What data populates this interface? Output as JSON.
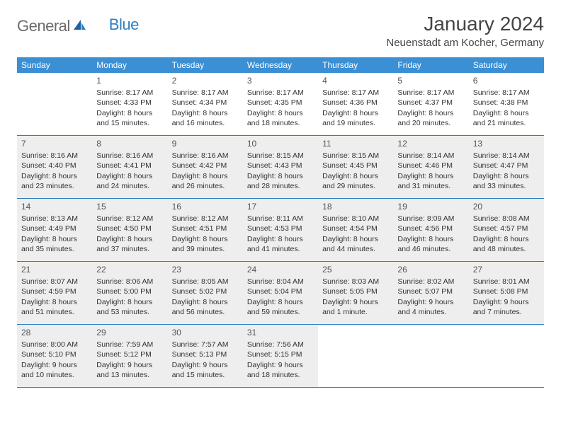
{
  "logo": {
    "text1": "General",
    "text2": "Blue"
  },
  "title": "January 2024",
  "location": "Neuenstadt am Kocher, Germany",
  "colors": {
    "header_bg": "#3b8fd4",
    "header_text": "#ffffff",
    "shade_bg": "#eeeeee",
    "rule": "#2d7fc1",
    "logo_gray": "#6b6b6b",
    "logo_blue": "#2d7fc1"
  },
  "weekdays": [
    "Sunday",
    "Monday",
    "Tuesday",
    "Wednesday",
    "Thursday",
    "Friday",
    "Saturday"
  ],
  "weeks": [
    [
      {
        "num": "",
        "sunrise": "",
        "sunset": "",
        "daylight1": "",
        "daylight2": "",
        "shaded": false
      },
      {
        "num": "1",
        "sunrise": "Sunrise: 8:17 AM",
        "sunset": "Sunset: 4:33 PM",
        "daylight1": "Daylight: 8 hours",
        "daylight2": "and 15 minutes.",
        "shaded": false
      },
      {
        "num": "2",
        "sunrise": "Sunrise: 8:17 AM",
        "sunset": "Sunset: 4:34 PM",
        "daylight1": "Daylight: 8 hours",
        "daylight2": "and 16 minutes.",
        "shaded": false
      },
      {
        "num": "3",
        "sunrise": "Sunrise: 8:17 AM",
        "sunset": "Sunset: 4:35 PM",
        "daylight1": "Daylight: 8 hours",
        "daylight2": "and 18 minutes.",
        "shaded": false
      },
      {
        "num": "4",
        "sunrise": "Sunrise: 8:17 AM",
        "sunset": "Sunset: 4:36 PM",
        "daylight1": "Daylight: 8 hours",
        "daylight2": "and 19 minutes.",
        "shaded": false
      },
      {
        "num": "5",
        "sunrise": "Sunrise: 8:17 AM",
        "sunset": "Sunset: 4:37 PM",
        "daylight1": "Daylight: 8 hours",
        "daylight2": "and 20 minutes.",
        "shaded": false
      },
      {
        "num": "6",
        "sunrise": "Sunrise: 8:17 AM",
        "sunset": "Sunset: 4:38 PM",
        "daylight1": "Daylight: 8 hours",
        "daylight2": "and 21 minutes.",
        "shaded": false
      }
    ],
    [
      {
        "num": "7",
        "sunrise": "Sunrise: 8:16 AM",
        "sunset": "Sunset: 4:40 PM",
        "daylight1": "Daylight: 8 hours",
        "daylight2": "and 23 minutes.",
        "shaded": true
      },
      {
        "num": "8",
        "sunrise": "Sunrise: 8:16 AM",
        "sunset": "Sunset: 4:41 PM",
        "daylight1": "Daylight: 8 hours",
        "daylight2": "and 24 minutes.",
        "shaded": true
      },
      {
        "num": "9",
        "sunrise": "Sunrise: 8:16 AM",
        "sunset": "Sunset: 4:42 PM",
        "daylight1": "Daylight: 8 hours",
        "daylight2": "and 26 minutes.",
        "shaded": true
      },
      {
        "num": "10",
        "sunrise": "Sunrise: 8:15 AM",
        "sunset": "Sunset: 4:43 PM",
        "daylight1": "Daylight: 8 hours",
        "daylight2": "and 28 minutes.",
        "shaded": true
      },
      {
        "num": "11",
        "sunrise": "Sunrise: 8:15 AM",
        "sunset": "Sunset: 4:45 PM",
        "daylight1": "Daylight: 8 hours",
        "daylight2": "and 29 minutes.",
        "shaded": true
      },
      {
        "num": "12",
        "sunrise": "Sunrise: 8:14 AM",
        "sunset": "Sunset: 4:46 PM",
        "daylight1": "Daylight: 8 hours",
        "daylight2": "and 31 minutes.",
        "shaded": true
      },
      {
        "num": "13",
        "sunrise": "Sunrise: 8:14 AM",
        "sunset": "Sunset: 4:47 PM",
        "daylight1": "Daylight: 8 hours",
        "daylight2": "and 33 minutes.",
        "shaded": true
      }
    ],
    [
      {
        "num": "14",
        "sunrise": "Sunrise: 8:13 AM",
        "sunset": "Sunset: 4:49 PM",
        "daylight1": "Daylight: 8 hours",
        "daylight2": "and 35 minutes.",
        "shaded": true
      },
      {
        "num": "15",
        "sunrise": "Sunrise: 8:12 AM",
        "sunset": "Sunset: 4:50 PM",
        "daylight1": "Daylight: 8 hours",
        "daylight2": "and 37 minutes.",
        "shaded": true
      },
      {
        "num": "16",
        "sunrise": "Sunrise: 8:12 AM",
        "sunset": "Sunset: 4:51 PM",
        "daylight1": "Daylight: 8 hours",
        "daylight2": "and 39 minutes.",
        "shaded": true
      },
      {
        "num": "17",
        "sunrise": "Sunrise: 8:11 AM",
        "sunset": "Sunset: 4:53 PM",
        "daylight1": "Daylight: 8 hours",
        "daylight2": "and 41 minutes.",
        "shaded": true
      },
      {
        "num": "18",
        "sunrise": "Sunrise: 8:10 AM",
        "sunset": "Sunset: 4:54 PM",
        "daylight1": "Daylight: 8 hours",
        "daylight2": "and 44 minutes.",
        "shaded": true
      },
      {
        "num": "19",
        "sunrise": "Sunrise: 8:09 AM",
        "sunset": "Sunset: 4:56 PM",
        "daylight1": "Daylight: 8 hours",
        "daylight2": "and 46 minutes.",
        "shaded": true
      },
      {
        "num": "20",
        "sunrise": "Sunrise: 8:08 AM",
        "sunset": "Sunset: 4:57 PM",
        "daylight1": "Daylight: 8 hours",
        "daylight2": "and 48 minutes.",
        "shaded": true
      }
    ],
    [
      {
        "num": "21",
        "sunrise": "Sunrise: 8:07 AM",
        "sunset": "Sunset: 4:59 PM",
        "daylight1": "Daylight: 8 hours",
        "daylight2": "and 51 minutes.",
        "shaded": true
      },
      {
        "num": "22",
        "sunrise": "Sunrise: 8:06 AM",
        "sunset": "Sunset: 5:00 PM",
        "daylight1": "Daylight: 8 hours",
        "daylight2": "and 53 minutes.",
        "shaded": true
      },
      {
        "num": "23",
        "sunrise": "Sunrise: 8:05 AM",
        "sunset": "Sunset: 5:02 PM",
        "daylight1": "Daylight: 8 hours",
        "daylight2": "and 56 minutes.",
        "shaded": true
      },
      {
        "num": "24",
        "sunrise": "Sunrise: 8:04 AM",
        "sunset": "Sunset: 5:04 PM",
        "daylight1": "Daylight: 8 hours",
        "daylight2": "and 59 minutes.",
        "shaded": true
      },
      {
        "num": "25",
        "sunrise": "Sunrise: 8:03 AM",
        "sunset": "Sunset: 5:05 PM",
        "daylight1": "Daylight: 9 hours",
        "daylight2": "and 1 minute.",
        "shaded": true
      },
      {
        "num": "26",
        "sunrise": "Sunrise: 8:02 AM",
        "sunset": "Sunset: 5:07 PM",
        "daylight1": "Daylight: 9 hours",
        "daylight2": "and 4 minutes.",
        "shaded": true
      },
      {
        "num": "27",
        "sunrise": "Sunrise: 8:01 AM",
        "sunset": "Sunset: 5:08 PM",
        "daylight1": "Daylight: 9 hours",
        "daylight2": "and 7 minutes.",
        "shaded": true
      }
    ],
    [
      {
        "num": "28",
        "sunrise": "Sunrise: 8:00 AM",
        "sunset": "Sunset: 5:10 PM",
        "daylight1": "Daylight: 9 hours",
        "daylight2": "and 10 minutes.",
        "shaded": true
      },
      {
        "num": "29",
        "sunrise": "Sunrise: 7:59 AM",
        "sunset": "Sunset: 5:12 PM",
        "daylight1": "Daylight: 9 hours",
        "daylight2": "and 13 minutes.",
        "shaded": true
      },
      {
        "num": "30",
        "sunrise": "Sunrise: 7:57 AM",
        "sunset": "Sunset: 5:13 PM",
        "daylight1": "Daylight: 9 hours",
        "daylight2": "and 15 minutes.",
        "shaded": true
      },
      {
        "num": "31",
        "sunrise": "Sunrise: 7:56 AM",
        "sunset": "Sunset: 5:15 PM",
        "daylight1": "Daylight: 9 hours",
        "daylight2": "and 18 minutes.",
        "shaded": true
      },
      {
        "num": "",
        "sunrise": "",
        "sunset": "",
        "daylight1": "",
        "daylight2": "",
        "shaded": false
      },
      {
        "num": "",
        "sunrise": "",
        "sunset": "",
        "daylight1": "",
        "daylight2": "",
        "shaded": false
      },
      {
        "num": "",
        "sunrise": "",
        "sunset": "",
        "daylight1": "",
        "daylight2": "",
        "shaded": false
      }
    ]
  ]
}
